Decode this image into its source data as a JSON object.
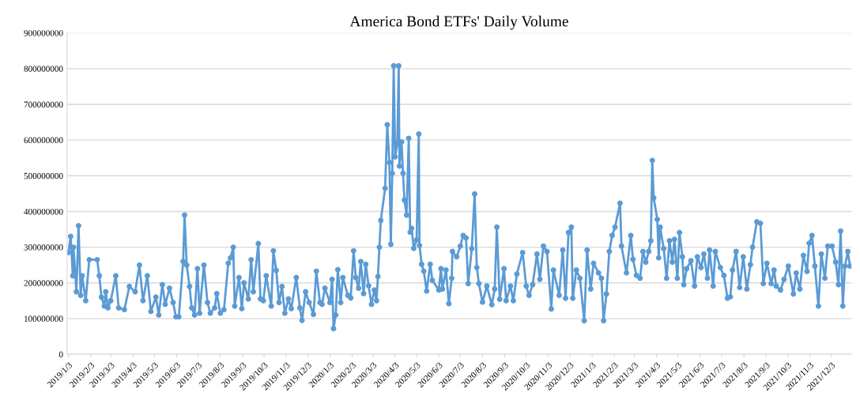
{
  "chart_data": {
    "type": "line",
    "title": "America Bond ETFs' Daily Volume",
    "x": [
      "2019-01-03",
      "2019-01-06",
      "2019-01-09",
      "2019-01-10",
      "2019-01-14",
      "2019-01-17",
      "2019-01-20",
      "2019-01-22",
      "2019-01-27",
      "2019-02-01",
      "2019-02-12",
      "2019-02-15",
      "2019-02-18",
      "2019-02-22",
      "2019-02-24",
      "2019-02-27",
      "2019-03-03",
      "2019-03-10",
      "2019-03-14",
      "2019-03-22",
      "2019-03-29",
      "2019-04-06",
      "2019-04-12",
      "2019-04-17",
      "2019-04-23",
      "2019-04-28",
      "2019-05-05",
      "2019-05-09",
      "2019-05-14",
      "2019-05-18",
      "2019-05-24",
      "2019-05-29",
      "2019-06-02",
      "2019-06-06",
      "2019-06-12",
      "2019-06-14",
      "2019-06-17",
      "2019-06-21",
      "2019-06-24",
      "2019-06-28",
      "2019-07-02",
      "2019-07-05",
      "2019-07-11",
      "2019-07-16",
      "2019-07-20",
      "2019-07-26",
      "2019-07-29",
      "2019-08-03",
      "2019-08-08",
      "2019-08-14",
      "2019-08-17",
      "2019-08-21",
      "2019-08-23",
      "2019-08-29",
      "2019-09-02",
      "2019-09-05",
      "2019-09-11",
      "2019-09-15",
      "2019-09-18",
      "2019-09-25",
      "2019-09-28",
      "2019-10-02",
      "2019-10-06",
      "2019-10-13",
      "2019-10-16",
      "2019-10-20",
      "2019-10-24",
      "2019-10-28",
      "2019-11-01",
      "2019-11-06",
      "2019-11-10",
      "2019-11-17",
      "2019-11-22",
      "2019-11-25",
      "2019-11-30",
      "2019-12-05",
      "2019-12-11",
      "2019-12-15",
      "2019-12-20",
      "2019-12-23",
      "2019-12-27",
      "2020-01-03",
      "2020-01-06",
      "2020-01-08",
      "2020-01-11",
      "2020-01-14",
      "2020-01-18",
      "2020-01-21",
      "2020-01-28",
      "2020-02-01",
      "2020-02-05",
      "2020-02-08",
      "2020-02-12",
      "2020-02-15",
      "2020-02-19",
      "2020-02-22",
      "2020-02-26",
      "2020-03-01",
      "2020-03-05",
      "2020-03-08",
      "2020-03-10",
      "2020-03-12",
      "2020-03-14",
      "2020-03-20",
      "2020-03-23",
      "2020-03-26",
      "2020-03-28",
      "2020-03-30",
      "2020-04-01",
      "2020-04-03",
      "2020-04-06",
      "2020-04-08",
      "2020-04-09",
      "2020-04-12",
      "2020-04-14",
      "2020-04-16",
      "2020-04-19",
      "2020-04-22",
      "2020-04-24",
      "2020-04-26",
      "2020-04-29",
      "2020-05-03",
      "2020-05-06",
      "2020-05-07",
      "2020-05-10",
      "2020-05-13",
      "2020-05-17",
      "2020-05-22",
      "2020-05-25",
      "2020-06-03",
      "2020-06-06",
      "2020-06-08",
      "2020-06-13",
      "2020-06-17",
      "2020-06-21",
      "2020-06-22",
      "2020-06-28",
      "2020-07-03",
      "2020-07-07",
      "2020-07-11",
      "2020-07-14",
      "2020-07-19",
      "2020-07-23",
      "2020-07-26",
      "2020-07-29",
      "2020-08-03",
      "2020-08-09",
      "2020-08-16",
      "2020-08-20",
      "2020-08-23",
      "2020-08-27",
      "2020-09-02",
      "2020-09-05",
      "2020-09-11",
      "2020-09-15",
      "2020-09-20",
      "2020-09-28",
      "2020-10-03",
      "2020-10-07",
      "2020-10-12",
      "2020-10-18",
      "2020-10-22",
      "2020-10-27",
      "2020-11-01",
      "2020-11-07",
      "2020-11-10",
      "2020-11-18",
      "2020-11-23",
      "2020-11-27",
      "2020-12-01",
      "2020-12-05",
      "2020-12-07",
      "2020-12-12",
      "2020-12-17",
      "2020-12-23",
      "2020-12-27",
      "2021-01-01",
      "2021-01-05",
      "2021-01-12",
      "2021-01-16",
      "2021-01-19",
      "2021-01-23",
      "2021-01-27",
      "2021-01-31",
      "2021-02-04",
      "2021-02-11",
      "2021-02-13",
      "2021-02-20",
      "2021-02-26",
      "2021-03-01",
      "2021-03-06",
      "2021-03-11",
      "2021-03-15",
      "2021-03-19",
      "2021-03-23",
      "2021-03-26",
      "2021-03-28",
      "2021-03-30",
      "2021-04-04",
      "2021-04-06",
      "2021-04-08",
      "2021-04-13",
      "2021-04-17",
      "2021-04-21",
      "2021-04-25",
      "2021-04-28",
      "2021-05-02",
      "2021-05-05",
      "2021-05-09",
      "2021-05-11",
      "2021-05-15",
      "2021-05-21",
      "2021-05-26",
      "2021-05-30",
      "2021-06-04",
      "2021-06-08",
      "2021-06-13",
      "2021-06-16",
      "2021-06-21",
      "2021-06-24",
      "2021-07-01",
      "2021-07-06",
      "2021-07-11",
      "2021-07-15",
      "2021-07-18",
      "2021-07-23",
      "2021-07-28",
      "2021-08-02",
      "2021-08-07",
      "2021-08-12",
      "2021-08-15",
      "2021-08-21",
      "2021-08-26",
      "2021-08-30",
      "2021-09-04",
      "2021-09-10",
      "2021-09-14",
      "2021-09-17",
      "2021-09-23",
      "2021-09-28",
      "2021-10-04",
      "2021-10-11",
      "2021-10-15",
      "2021-10-20",
      "2021-10-25",
      "2021-10-30",
      "2021-11-02",
      "2021-11-06",
      "2021-11-10",
      "2021-11-15",
      "2021-11-19",
      "2021-11-24",
      "2021-11-28",
      "2021-12-04",
      "2021-12-09",
      "2021-12-13",
      "2021-12-16",
      "2021-12-19",
      "2021-12-22",
      "2021-12-26",
      "2021-12-29"
    ],
    "series": [
      {
        "color": "#5b9bd5",
        "values": [
          285000000,
          330000000,
          220000000,
          300000000,
          175000000,
          360000000,
          165000000,
          220000000,
          150000000,
          265000000,
          265000000,
          220000000,
          160000000,
          135000000,
          175000000,
          130000000,
          150000000,
          220000000,
          130000000,
          125000000,
          190000000,
          175000000,
          250000000,
          150000000,
          220000000,
          120000000,
          160000000,
          110000000,
          195000000,
          140000000,
          185000000,
          145000000,
          105000000,
          105000000,
          260000000,
          390000000,
          250000000,
          190000000,
          130000000,
          110000000,
          240000000,
          115000000,
          250000000,
          145000000,
          115000000,
          130000000,
          170000000,
          115000000,
          125000000,
          255000000,
          270000000,
          300000000,
          135000000,
          215000000,
          128000000,
          200000000,
          155000000,
          265000000,
          175000000,
          310000000,
          155000000,
          150000000,
          220000000,
          135000000,
          290000000,
          235000000,
          145000000,
          190000000,
          115000000,
          155000000,
          128000000,
          215000000,
          130000000,
          95000000,
          175000000,
          145000000,
          112000000,
          233000000,
          145000000,
          140000000,
          185000000,
          145000000,
          210000000,
          72000000,
          110000000,
          237000000,
          145000000,
          215000000,
          165000000,
          158000000,
          290000000,
          215000000,
          185000000,
          260000000,
          170000000,
          252000000,
          192000000,
          140000000,
          180000000,
          150000000,
          218000000,
          300000000,
          375000000,
          465000000,
          643000000,
          537000000,
          308000000,
          507000000,
          808000000,
          553000000,
          590000000,
          808000000,
          527000000,
          595000000,
          507000000,
          432000000,
          390000000,
          605000000,
          342000000,
          353000000,
          297000000,
          320000000,
          617000000,
          305000000,
          252000000,
          233000000,
          177000000,
          252000000,
          207000000,
          180000000,
          240000000,
          183000000,
          236000000,
          142000000,
          213000000,
          288000000,
          273000000,
          303000000,
          333000000,
          326000000,
          198000000,
          296000000,
          449000000,
          243000000,
          198000000,
          146000000,
          191000000,
          139000000,
          183000000,
          356000000,
          154000000,
          240000000,
          150000000,
          191000000,
          150000000,
          225000000,
          285000000,
          191000000,
          165000000,
          195000000,
          281000000,
          210000000,
          303000000,
          288000000,
          127000000,
          236000000,
          165000000,
          292000000,
          157000000,
          341000000,
          356000000,
          157000000,
          236000000,
          213000000,
          94000000,
          292000000,
          183000000,
          255000000,
          228000000,
          213000000,
          94000000,
          169000000,
          288000000,
          333000000,
          356000000,
          423000000,
          303000000,
          228000000,
          333000000,
          266000000,
          221000000,
          213000000,
          288000000,
          258000000,
          288000000,
          318000000,
          543000000,
          438000000,
          378000000,
          270000000,
          356000000,
          296000000,
          213000000,
          318000000,
          258000000,
          322000000,
          213000000,
          341000000,
          273000000,
          195000000,
          240000000,
          262000000,
          191000000,
          273000000,
          243000000,
          281000000,
          213000000,
          292000000,
          191000000,
          288000000,
          243000000,
          221000000,
          157000000,
          161000000,
          236000000,
          288000000,
          187000000,
          273000000,
          183000000,
          251000000,
          300000000,
          371000000,
          367000000,
          198000000,
          255000000,
          198000000,
          236000000,
          191000000,
          180000000,
          210000000,
          247000000,
          169000000,
          228000000,
          183000000,
          277000000,
          232000000,
          311000000,
          333000000,
          247000000,
          135000000,
          281000000,
          213000000,
          303000000,
          303000000,
          258000000,
          195000000,
          345000000,
          135000000,
          247000000,
          288000000,
          247000000
        ]
      }
    ],
    "xlim": [
      "2019-01-01",
      "2021-12-31"
    ],
    "xticks": [
      {
        "value": "2019-01-03",
        "label": "2019/1/3"
      },
      {
        "value": "2019-02-03",
        "label": "2019/2/3"
      },
      {
        "value": "2019-03-03",
        "label": "2019/3/3"
      },
      {
        "value": "2019-04-03",
        "label": "2019/4/3"
      },
      {
        "value": "2019-05-03",
        "label": "2019/5/3"
      },
      {
        "value": "2019-06-03",
        "label": "2019/6/3"
      },
      {
        "value": "2019-07-03",
        "label": "2019/7/3"
      },
      {
        "value": "2019-08-03",
        "label": "2019/8/3"
      },
      {
        "value": "2019-09-03",
        "label": "2019/9/3"
      },
      {
        "value": "2019-10-03",
        "label": "2019/10/3"
      },
      {
        "value": "2019-11-03",
        "label": "2019/11/3"
      },
      {
        "value": "2019-12-03",
        "label": "2019/12/3"
      },
      {
        "value": "2020-01-03",
        "label": "2020/1/3"
      },
      {
        "value": "2020-02-03",
        "label": "2020/2/3"
      },
      {
        "value": "2020-03-03",
        "label": "2020/3/3"
      },
      {
        "value": "2020-04-03",
        "label": "2020/4/3"
      },
      {
        "value": "2020-05-03",
        "label": "2020/5/3"
      },
      {
        "value": "2020-06-03",
        "label": "2020/6/3"
      },
      {
        "value": "2020-07-03",
        "label": "2020/7/3"
      },
      {
        "value": "2020-08-03",
        "label": "2020/8/3"
      },
      {
        "value": "2020-09-03",
        "label": "2020/9/3"
      },
      {
        "value": "2020-10-03",
        "label": "2020/10/3"
      },
      {
        "value": "2020-11-03",
        "label": "2020/11/3"
      },
      {
        "value": "2020-12-03",
        "label": "2020/12/3"
      },
      {
        "value": "2021-01-03",
        "label": "2021/1/3"
      },
      {
        "value": "2021-02-03",
        "label": "2021/2/3"
      },
      {
        "value": "2021-03-03",
        "label": "2021/3/3"
      },
      {
        "value": "2021-04-03",
        "label": "2021/4/3"
      },
      {
        "value": "2021-05-03",
        "label": "2021/5/3"
      },
      {
        "value": "2021-06-03",
        "label": "2021/6/3"
      },
      {
        "value": "2021-07-03",
        "label": "2021/7/3"
      },
      {
        "value": "2021-08-03",
        "label": "2021/8/3"
      },
      {
        "value": "2021-09-03",
        "label": "2021/9/3"
      },
      {
        "value": "2021-10-03",
        "label": "2021/10/3"
      },
      {
        "value": "2021-11-03",
        "label": "2021/11/3"
      },
      {
        "value": "2021-12-03",
        "label": "2021/12/3"
      }
    ],
    "ylim": [
      0,
      900000000
    ],
    "yticks": [
      0,
      100000000,
      200000000,
      300000000,
      400000000,
      500000000,
      600000000,
      700000000,
      800000000,
      900000000
    ],
    "grid": "y",
    "marker": "circle",
    "line_style": "solid"
  }
}
